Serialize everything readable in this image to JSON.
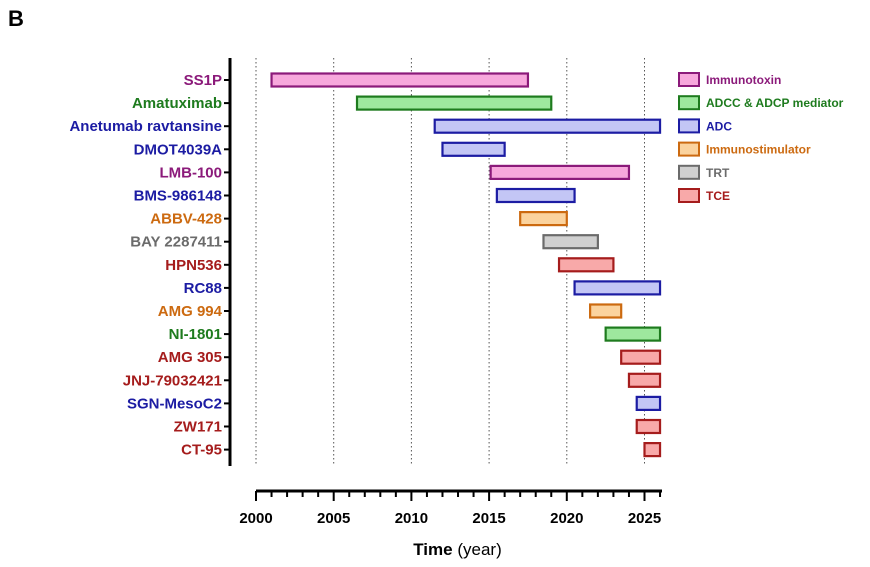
{
  "panel_letter": "B",
  "chart_data": {
    "type": "bar",
    "orientation": "horizontal-gantt",
    "xlabel": "Time",
    "xlabel_unit": "(year)",
    "xlim": [
      2000,
      2026
    ],
    "xticks": [
      2000,
      2005,
      2010,
      2015,
      2020,
      2025
    ],
    "grid": "vertical dotted at major ticks",
    "legend_placement": "right",
    "categories_legend": [
      {
        "name": "Immunotoxin",
        "fill": "#f7a8dc",
        "stroke": "#8b1a7a",
        "text": "#8b1a7a"
      },
      {
        "name": "ADCC & ADCP mediator",
        "fill": "#9ee89e",
        "stroke": "#1e7b1e",
        "text": "#1e7b1e"
      },
      {
        "name": "ADC",
        "fill": "#c3c6f5",
        "stroke": "#1c1ca3",
        "text": "#1c1ca3"
      },
      {
        "name": "Immunostimulator",
        "fill": "#fbd39e",
        "stroke": "#cc6a10",
        "text": "#cc6a10"
      },
      {
        "name": "TRT",
        "fill": "#d0d0d0",
        "stroke": "#6b6b6b",
        "text": "#6b6b6b"
      },
      {
        "name": "TCE",
        "fill": "#f8a9a9",
        "stroke": "#a51c1c",
        "text": "#a51c1c"
      }
    ],
    "rows": [
      {
        "name": "SS1P",
        "category": "Immunotoxin",
        "start": 2001.0,
        "end": 2017.5
      },
      {
        "name": "Amatuximab",
        "category": "ADCC & ADCP mediator",
        "start": 2006.5,
        "end": 2019.0
      },
      {
        "name": "Anetumab ravtansine",
        "category": "ADC",
        "start": 2011.5,
        "end": 2026.0
      },
      {
        "name": "DMOT4039A",
        "category": "ADC",
        "start": 2012.0,
        "end": 2016.0
      },
      {
        "name": "LMB-100",
        "category": "Immunotoxin",
        "start": 2015.1,
        "end": 2024.0
      },
      {
        "name": "BMS-986148",
        "category": "ADC",
        "start": 2015.5,
        "end": 2020.5
      },
      {
        "name": "ABBV-428",
        "category": "Immunostimulator",
        "start": 2017.0,
        "end": 2020.0
      },
      {
        "name": "BAY 2287411",
        "category": "TRT",
        "start": 2018.5,
        "end": 2022.0
      },
      {
        "name": "HPN536",
        "category": "TCE",
        "start": 2019.5,
        "end": 2023.0
      },
      {
        "name": "RC88",
        "category": "ADC",
        "start": 2020.5,
        "end": 2026.0
      },
      {
        "name": "AMG 994",
        "category": "Immunostimulator",
        "start": 2021.5,
        "end": 2023.5
      },
      {
        "name": "NI-1801",
        "category": "ADCC & ADCP mediator",
        "start": 2022.5,
        "end": 2026.0
      },
      {
        "name": "AMG 305",
        "category": "TCE",
        "start": 2023.5,
        "end": 2026.0
      },
      {
        "name": "JNJ-79032421",
        "category": "TCE",
        "start": 2024.0,
        "end": 2026.0
      },
      {
        "name": "SGN-MesoC2",
        "category": "ADC",
        "start": 2024.5,
        "end": 2026.0
      },
      {
        "name": "ZW171",
        "category": "TCE",
        "start": 2024.5,
        "end": 2026.0
      },
      {
        "name": "CT-95",
        "category": "TCE",
        "start": 2025.0,
        "end": 2026.0
      }
    ]
  }
}
